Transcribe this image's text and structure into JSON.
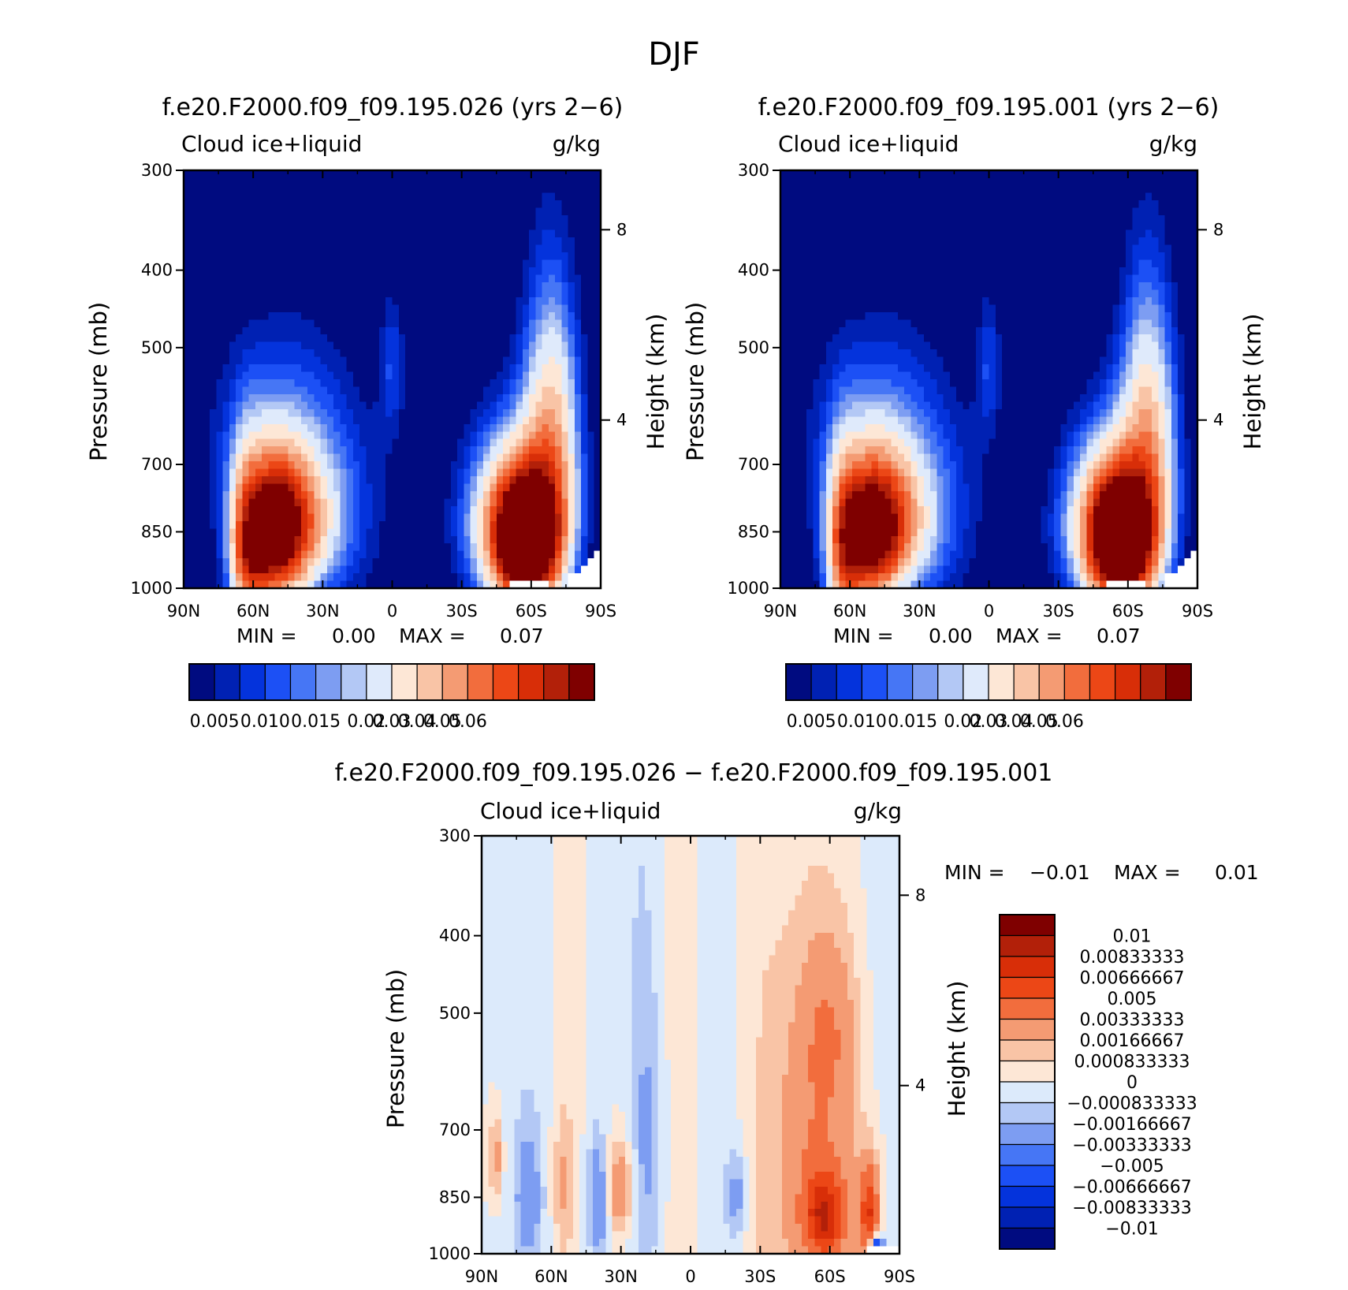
{
  "figure": {
    "title": "DJF"
  },
  "colors": {
    "abs_fills": [
      "#000b80",
      "#0021b3",
      "#0433dc",
      "#1c50f5",
      "#4676f5",
      "#7d9df2",
      "#b3c8f5",
      "#dfeafb",
      "#fde7d6",
      "#f9c4a6",
      "#f49b73",
      "#f26d3d",
      "#ec4716",
      "#d82e08",
      "#b22009",
      "#7f0000"
    ],
    "diff_fills": [
      "#000b80",
      "#0021b3",
      "#0433dc",
      "#1c50f5",
      "#4676f5",
      "#7d9df2",
      "#b3c8f5",
      "#dceafb",
      "#fde7d6",
      "#f9c4a6",
      "#f49b73",
      "#f26d3d",
      "#ec4716",
      "#d82e08",
      "#b22009",
      "#7f0000"
    ]
  },
  "chart_data": [
    {
      "type": "heatmap",
      "title": "f.e20.F2000.f09_f09.195.026 (yrs 2−6)",
      "left_string": "Cloud ice+liquid",
      "right_string": "g/kg",
      "ylabel": "Pressure (mb)",
      "y2label": "Height (km)",
      "x_ticks": [
        "90N",
        "60N",
        "30N",
        "0",
        "30S",
        "60S",
        "90S"
      ],
      "x_values": [
        90,
        60,
        30,
        0,
        -30,
        -60,
        -90
      ],
      "xlim": [
        90,
        -90
      ],
      "y_ticks": [
        "300",
        "400",
        "500",
        "700",
        "850",
        "1000"
      ],
      "y_values": [
        300,
        400,
        500,
        700,
        850,
        1000
      ],
      "ylim": [
        1000,
        300
      ],
      "y_scale": "log",
      "y2_ticks": [
        "8",
        "4"
      ],
      "y2_values": [
        8,
        4
      ],
      "min_label": "MIN =",
      "min_value": "0.00",
      "max_label": "MAX =",
      "max_value": "0.07",
      "colorbar_levels": [
        "0.005",
        "0.010",
        "0.015",
        "0.02",
        "0.03",
        "0.04",
        "0.05",
        "0.06"
      ],
      "features": [
        {
          "lat": 53,
          "p": 870,
          "peak": 0.042,
          "slat": 9,
          "sp": 120
        },
        {
          "lat": 45,
          "p": 830,
          "peak": 0.032,
          "slat": 12,
          "sp": 110
        },
        {
          "lat": 63,
          "p": 920,
          "peak": 0.026,
          "slat": 5,
          "sp": 170
        },
        {
          "lat": 35,
          "p": 790,
          "peak": 0.016,
          "slat": 20,
          "sp": 190
        },
        {
          "lat": -58,
          "p": 880,
          "peak": 0.072,
          "slat": 9,
          "sp": 110
        },
        {
          "lat": -52,
          "p": 830,
          "peak": 0.038,
          "slat": 14,
          "sp": 140
        },
        {
          "lat": -70,
          "p": 720,
          "peak": 0.024,
          "slat": 8,
          "sp": 190
        },
        {
          "lat": -67,
          "p": 560,
          "peak": 0.011,
          "slat": 9,
          "sp": 140
        },
        {
          "lat": 0,
          "p": 530,
          "peak": 0.009,
          "slat": 4,
          "sp": 80
        },
        {
          "lat": 58,
          "p": 640,
          "peak": 0.007,
          "slat": 18,
          "sp": 130
        }
      ]
    },
    {
      "type": "heatmap",
      "title": "f.e20.F2000.f09_f09.195.001 (yrs 2−6)",
      "left_string": "Cloud ice+liquid",
      "right_string": "g/kg",
      "ylabel": "Pressure (mb)",
      "y2label": "Height (km)",
      "x_ticks": [
        "90N",
        "60N",
        "30N",
        "0",
        "30S",
        "60S",
        "90S"
      ],
      "x_values": [
        90,
        60,
        30,
        0,
        -30,
        -60,
        -90
      ],
      "xlim": [
        90,
        -90
      ],
      "y_ticks": [
        "300",
        "400",
        "500",
        "700",
        "850",
        "1000"
      ],
      "y_values": [
        300,
        400,
        500,
        700,
        850,
        1000
      ],
      "ylim": [
        1000,
        300
      ],
      "y_scale": "log",
      "y2_ticks": [
        "8",
        "4"
      ],
      "y2_values": [
        8,
        4
      ],
      "min_label": "MIN =",
      "min_value": "0.00",
      "max_label": "MAX =",
      "max_value": "0.07",
      "colorbar_levels": [
        "0.005",
        "0.010",
        "0.015",
        "0.02",
        "0.03",
        "0.04",
        "0.05",
        "0.06"
      ],
      "features": [
        {
          "lat": 53,
          "p": 870,
          "peak": 0.04,
          "slat": 9,
          "sp": 120
        },
        {
          "lat": 45,
          "p": 830,
          "peak": 0.031,
          "slat": 12,
          "sp": 110
        },
        {
          "lat": 63,
          "p": 920,
          "peak": 0.025,
          "slat": 5,
          "sp": 170
        },
        {
          "lat": 35,
          "p": 790,
          "peak": 0.016,
          "slat": 20,
          "sp": 190
        },
        {
          "lat": -57,
          "p": 880,
          "peak": 0.07,
          "slat": 9,
          "sp": 110
        },
        {
          "lat": -52,
          "p": 830,
          "peak": 0.037,
          "slat": 14,
          "sp": 140
        },
        {
          "lat": -70,
          "p": 720,
          "peak": 0.023,
          "slat": 8,
          "sp": 190
        },
        {
          "lat": -67,
          "p": 560,
          "peak": 0.011,
          "slat": 9,
          "sp": 140
        },
        {
          "lat": 0,
          "p": 530,
          "peak": 0.009,
          "slat": 4,
          "sp": 80
        },
        {
          "lat": 58,
          "p": 640,
          "peak": 0.007,
          "slat": 18,
          "sp": 130
        }
      ]
    },
    {
      "type": "heatmap",
      "title": "f.e20.F2000.f09_f09.195.026 − f.e20.F2000.f09_f09.195.001",
      "left_string": "Cloud ice+liquid",
      "right_string": "g/kg",
      "ylabel": "Pressure (mb)",
      "y2label": "Height (km)",
      "x_ticks": [
        "90N",
        "60N",
        "30N",
        "0",
        "30S",
        "60S",
        "90S"
      ],
      "x_values": [
        90,
        60,
        30,
        0,
        -30,
        -60,
        -90
      ],
      "xlim": [
        90,
        -90
      ],
      "y_ticks": [
        "300",
        "400",
        "500",
        "700",
        "850",
        "1000"
      ],
      "y_values": [
        300,
        400,
        500,
        700,
        850,
        1000
      ],
      "ylim": [
        1000,
        300
      ],
      "y_scale": "log",
      "y2_ticks": [
        "8",
        "4"
      ],
      "y2_values": [
        8,
        4
      ],
      "min_label": "MIN =",
      "min_value": "−0.01",
      "max_label": "MAX =",
      "max_value": "0.01",
      "colorbar_levels": [
        "0.01",
        "0.00833333",
        "0.00666667",
        "0.005",
        "0.00333333",
        "0.00166667",
        "0.000833333",
        "0",
        "−0.000833333",
        "−0.00166667",
        "−0.00333333",
        "−0.005",
        "−0.00666667",
        "−0.00833333",
        "−0.01"
      ],
      "features": [
        {
          "lat": -55,
          "p": 780,
          "peak": 0.0035,
          "slat": 12,
          "sp": 260
        },
        {
          "lat": -58,
          "p": 900,
          "peak": 0.006,
          "slat": 6,
          "sp": 70
        },
        {
          "lat": -77,
          "p": 890,
          "peak": 0.0065,
          "slat": 3,
          "sp": 90
        },
        {
          "lat": -60,
          "p": 520,
          "peak": 0.0018,
          "slat": 8,
          "sp": 80
        },
        {
          "lat": 30,
          "p": 830,
          "peak": 0.0032,
          "slat": 4,
          "sp": 80
        },
        {
          "lat": 84,
          "p": 760,
          "peak": 0.0025,
          "slat": 2,
          "sp": 60
        },
        {
          "lat": 55,
          "p": 820,
          "peak": 0.0016,
          "slat": 3,
          "sp": 120
        },
        {
          "lat": 70,
          "p": 850,
          "peak": -0.0022,
          "slat": 4,
          "sp": 110
        },
        {
          "lat": 40,
          "p": 860,
          "peak": -0.003,
          "slat": 3,
          "sp": 100
        },
        {
          "lat": 18,
          "p": 720,
          "peak": -0.0015,
          "slat": 5,
          "sp": 200
        },
        {
          "lat": -20,
          "p": 850,
          "peak": -0.0022,
          "slat": 3,
          "sp": 80
        },
        {
          "lat": -80,
          "p": 980,
          "peak": -0.009,
          "slat": 2,
          "sp": 20
        }
      ],
      "bands": [
        {
          "lat": 70,
          "width": 8,
          "value": -0.0006
        },
        {
          "lat": 50,
          "width": 7,
          "value": 0.0005
        },
        {
          "lat": 42,
          "width": 5,
          "value": -0.0005
        },
        {
          "lat": 22,
          "width": 6,
          "value": -0.0007
        },
        {
          "lat": 5,
          "width": 7,
          "value": 0.0005
        },
        {
          "lat": -12,
          "width": 6,
          "value": -0.0006
        },
        {
          "lat": -30,
          "width": 8,
          "value": 0.0006
        },
        {
          "lat": -80,
          "width": 6,
          "value": -0.0004
        }
      ]
    }
  ]
}
